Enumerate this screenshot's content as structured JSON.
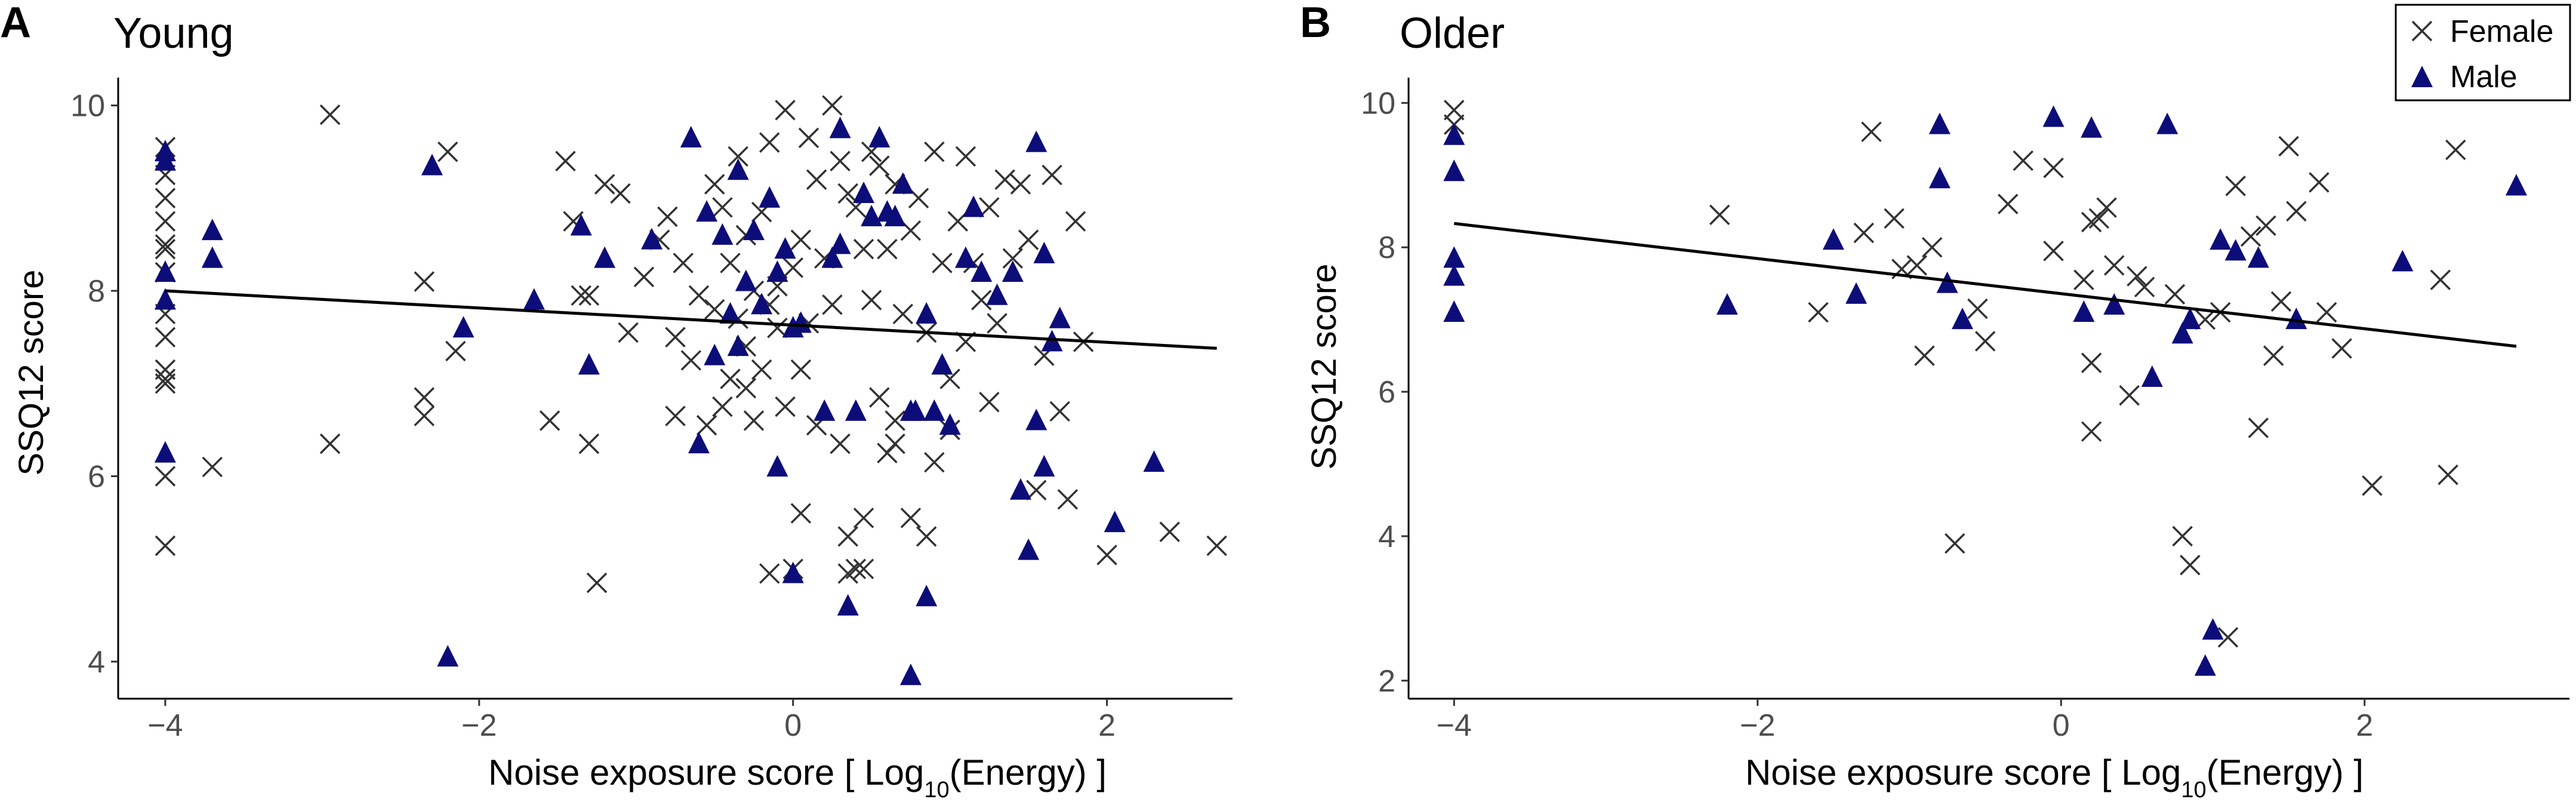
{
  "colors": {
    "female": "#333333",
    "male": "#0d0d7a",
    "line": "#000000",
    "axis": "#000000",
    "tick_text": "#4d4d4d"
  },
  "legend": {
    "items": [
      {
        "label": "Female",
        "marker": "cross"
      },
      {
        "label": "Male",
        "marker": "triangle"
      }
    ],
    "placement": "top-right of panel B"
  },
  "chart_data": [
    {
      "panel": "A",
      "title": "Young",
      "type": "scatter",
      "xlabel": "Noise exposure score [ Log10(Energy) ]",
      "xlabel_main": "Noise exposure score [ Log",
      "xlabel_sub": "10",
      "xlabel_tail": "(Energy) ]",
      "ylabel": "SSQ12 score",
      "xlim": [
        -4.3,
        2.8
      ],
      "ylim": [
        3.6,
        10.3
      ],
      "xticks": [
        -4,
        -2,
        0,
        2
      ],
      "xtick_labels": [
        "−4",
        "−2",
        "0",
        "2"
      ],
      "yticks": [
        4,
        6,
        8,
        10
      ],
      "ytick_labels": [
        "4",
        "6",
        "8",
        "10"
      ],
      "fit_line": {
        "x": [
          -4,
          2.7
        ],
        "y": [
          8.0,
          7.38
        ]
      },
      "series": [
        {
          "name": "Female",
          "x": [
            -4,
            -4,
            -4,
            -4,
            -4,
            -4,
            -4,
            -4,
            -4,
            -4,
            -4,
            -4,
            -4,
            -4,
            -3.7,
            -2.95,
            -2.95,
            -2.35,
            -2.35,
            -2.2,
            -2.15,
            -1.55,
            -1.45,
            -1.4,
            -1.35,
            -1.3,
            -1.3,
            -1.25,
            -1.2,
            -1.1,
            -1.05,
            -0.95,
            -0.85,
            -0.8,
            -0.75,
            -0.75,
            -0.7,
            -0.65,
            -0.6,
            -0.55,
            -0.5,
            -0.5,
            -0.45,
            -0.45,
            -0.4,
            -0.4,
            -0.35,
            -0.35,
            -0.3,
            -0.3,
            -0.25,
            -0.25,
            -0.2,
            -0.2,
            -0.15,
            -0.15,
            -0.1,
            -0.1,
            -0.05,
            -0.05,
            0,
            0,
            0.05,
            0.05,
            0.1,
            0.1,
            0.15,
            0.15,
            0.2,
            0.25,
            0.25,
            0.3,
            0.3,
            0.35,
            0.35,
            0.4,
            0.4,
            0.45,
            0.45,
            0.5,
            0.5,
            0.55,
            0.55,
            0.6,
            0.6,
            0.65,
            0.65,
            0.7,
            0.75,
            0.75,
            0.8,
            0.85,
            0.85,
            0.9,
            0.9,
            0.95,
            1.0,
            1.0,
            1.05,
            1.1,
            1.1,
            1.15,
            1.2,
            1.25,
            1.25,
            1.3,
            1.35,
            1.4,
            1.45,
            1.5,
            1.55,
            1.6,
            1.65,
            1.7,
            1.75,
            1.8,
            1.85,
            2.0,
            2.4,
            2.7,
            -0.15,
            0.05,
            0.35,
            0.45,
            -0.3,
            0.65,
            -2.35
          ],
          "y": [
            9.55,
            9.25,
            9.0,
            8.75,
            8.5,
            8.2,
            7.75,
            7.5,
            7.15,
            7.05,
            7.0,
            6.0,
            5.25,
            8.45,
            6.1,
            9.9,
            6.35,
            8.1,
            6.85,
            9.5,
            7.35,
            6.6,
            9.4,
            8.75,
            7.95,
            7.95,
            6.35,
            4.85,
            9.15,
            9.05,
            7.55,
            8.15,
            8.55,
            8.8,
            7.5,
            6.65,
            8.3,
            7.25,
            7.95,
            6.55,
            9.15,
            7.8,
            8.9,
            6.75,
            8.3,
            7.05,
            9.45,
            7.7,
            8.6,
            7.4,
            8.0,
            6.6,
            8.85,
            7.15,
            9.6,
            7.85,
            8.05,
            7.6,
            9.95,
            6.75,
            8.25,
            5.0,
            8.55,
            7.15,
            9.65,
            7.65,
            9.2,
            6.55,
            8.35,
            10.0,
            7.85,
            9.4,
            6.35,
            9.05,
            5.35,
            8.9,
            5.0,
            8.45,
            5.55,
            9.5,
            7.9,
            9.35,
            6.85,
            8.45,
            6.25,
            9.15,
            6.6,
            7.75,
            8.65,
            5.55,
            9.0,
            7.55,
            5.35,
            9.5,
            6.15,
            8.3,
            7.05,
            6.5,
            8.75,
            9.45,
            7.45,
            8.3,
            7.9,
            8.9,
            6.8,
            7.65,
            9.2,
            8.35,
            9.15,
            8.55,
            5.85,
            7.3,
            9.25,
            6.7,
            5.75,
            8.75,
            7.45,
            5.15,
            5.4,
            5.25,
            4.95,
            5.6,
            4.95,
            5.0,
            6.95,
            6.35,
            6.65
          ]
        },
        {
          "name": "Male",
          "x": [
            -4,
            -4,
            -4,
            -4,
            -4,
            -3.7,
            -3.7,
            -2.3,
            -2.2,
            -2.1,
            -1.65,
            -1.35,
            -1.3,
            -1.2,
            -0.9,
            -0.65,
            -0.6,
            -0.55,
            -0.5,
            -0.45,
            -0.4,
            -0.35,
            -0.35,
            -0.3,
            -0.25,
            -0.2,
            -0.15,
            -0.1,
            -0.1,
            -0.05,
            0,
            0,
            0.05,
            0.2,
            0.25,
            0.3,
            0.3,
            0.35,
            0.4,
            0.45,
            0.5,
            0.55,
            0.6,
            0.65,
            0.7,
            0.75,
            0.75,
            0.85,
            0.9,
            0.95,
            1.0,
            1.1,
            1.15,
            1.2,
            1.3,
            1.4,
            1.45,
            1.5,
            1.55,
            1.55,
            1.6,
            1.6,
            1.65,
            1.7,
            2.05,
            2.3,
            0.78,
            0.85
          ],
          "y": [
            9.5,
            9.4,
            8.2,
            7.9,
            6.25,
            8.65,
            8.35,
            9.35,
            4.05,
            7.6,
            7.9,
            8.7,
            7.2,
            8.35,
            8.55,
            9.65,
            6.35,
            8.85,
            7.3,
            8.6,
            7.75,
            7.4,
            9.3,
            8.1,
            8.65,
            7.85,
            9.0,
            8.2,
            6.1,
            8.45,
            7.6,
            4.95,
            7.65,
            6.7,
            8.35,
            9.75,
            8.5,
            4.6,
            6.7,
            9.05,
            8.8,
            9.65,
            8.85,
            8.8,
            9.15,
            6.7,
            3.85,
            7.75,
            6.7,
            7.2,
            6.55,
            8.35,
            8.9,
            8.2,
            7.95,
            8.2,
            5.85,
            5.2,
            9.6,
            6.6,
            6.1,
            8.4,
            7.45,
            7.7,
            5.5,
            6.15,
            6.7,
            4.7
          ]
        }
      ]
    },
    {
      "panel": "B",
      "title": "Older",
      "type": "scatter",
      "xlabel": "Noise exposure score [ Log10(Energy) ]",
      "xlabel_main": "Noise exposure score [ Log",
      "xlabel_sub": "10",
      "xlabel_tail": "(Energy) ]",
      "ylabel": "SSQ12 score",
      "xlim": [
        -4.3,
        3.35
      ],
      "ylim": [
        1.75,
        10.35
      ],
      "xticks": [
        -4,
        -2,
        0,
        2
      ],
      "xtick_labels": [
        "−4",
        "−2",
        "0",
        "2"
      ],
      "yticks": [
        2,
        4,
        6,
        8,
        10
      ],
      "ytick_labels": [
        "2",
        "4",
        "6",
        "8",
        "10"
      ],
      "fit_line": {
        "x": [
          -4,
          3.0
        ],
        "y": [
          8.33,
          6.63
        ]
      },
      "series": [
        {
          "name": "Female",
          "x": [
            -4,
            -4,
            -2.25,
            -1.6,
            -1.3,
            -1.25,
            -1.1,
            -1.05,
            -0.95,
            -0.9,
            -0.85,
            -0.7,
            -0.55,
            -0.5,
            -0.35,
            -0.25,
            -0.05,
            -0.05,
            0.15,
            0.2,
            0.2,
            0.2,
            0.25,
            0.3,
            0.35,
            0.45,
            0.5,
            0.55,
            0.75,
            0.8,
            0.85,
            0.95,
            1.05,
            1.1,
            1.15,
            1.25,
            1.3,
            1.35,
            1.4,
            1.45,
            1.5,
            1.55,
            1.7,
            1.75,
            1.85,
            2.05,
            2.5,
            2.55,
            2.6
          ],
          "y": [
            9.9,
            9.7,
            8.45,
            7.1,
            8.2,
            9.6,
            8.4,
            7.7,
            7.75,
            6.5,
            8.0,
            3.9,
            7.15,
            6.7,
            8.6,
            9.2,
            9.1,
            7.95,
            7.55,
            6.4,
            5.45,
            8.35,
            8.4,
            8.55,
            7.75,
            5.95,
            7.6,
            7.45,
            7.35,
            4.0,
            3.6,
            7.0,
            7.1,
            2.6,
            8.85,
            8.15,
            5.5,
            8.3,
            6.5,
            7.25,
            9.4,
            8.5,
            8.9,
            7.1,
            6.6,
            4.7,
            7.55,
            4.85,
            9.35
          ]
        },
        {
          "name": "Male",
          "x": [
            -4,
            -4,
            -4,
            -4,
            -4,
            -2.2,
            -1.5,
            -1.35,
            -0.8,
            -0.8,
            -0.75,
            -0.65,
            -0.05,
            0.15,
            0.2,
            0.35,
            0.6,
            0.7,
            0.8,
            0.85,
            0.95,
            1.0,
            1.05,
            1.15,
            1.3,
            1.55,
            2.25,
            3.0
          ],
          "y": [
            9.55,
            9.05,
            7.85,
            7.6,
            7.1,
            7.2,
            8.1,
            7.35,
            9.7,
            8.95,
            7.5,
            7.0,
            9.8,
            7.1,
            9.65,
            7.2,
            6.2,
            9.7,
            6.8,
            7.0,
            2.2,
            2.7,
            8.1,
            7.95,
            7.85,
            7.0,
            7.8,
            8.85
          ]
        }
      ]
    }
  ]
}
